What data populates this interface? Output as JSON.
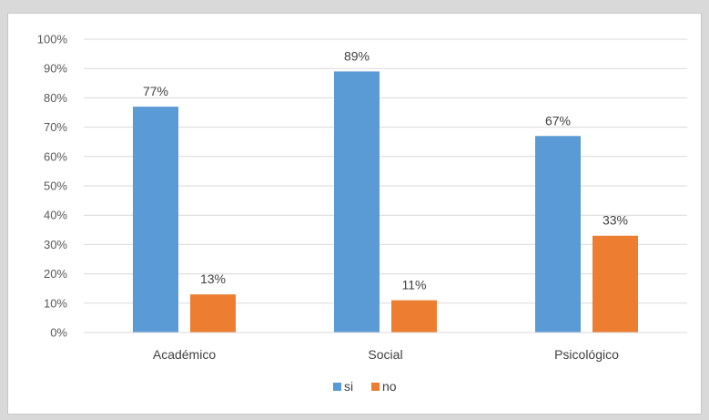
{
  "chart_data": {
    "type": "bar",
    "categories": [
      "Académico",
      "Social",
      "Psicológico"
    ],
    "series": [
      {
        "name": "si",
        "values": [
          77,
          89,
          67
        ],
        "color": "#5b9bd5"
      },
      {
        "name": "no",
        "values": [
          13,
          11,
          33
        ],
        "color": "#ed7d31"
      }
    ],
    "ylim": [
      0,
      100
    ],
    "yticks": [
      0,
      10,
      20,
      30,
      40,
      50,
      60,
      70,
      80,
      90,
      100
    ],
    "value_suffix": "%",
    "grid": true,
    "legend_position": "bottom",
    "title": "",
    "xlabel": "",
    "ylabel": ""
  }
}
